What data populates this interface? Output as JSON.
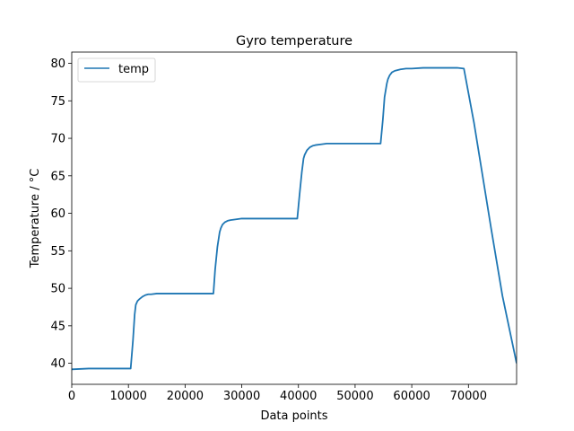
{
  "chart_data": {
    "type": "line",
    "title": "Gyro temperature",
    "xlabel": "Data points",
    "ylabel": "Temperature / °C",
    "xlim": [
      0,
      78500
    ],
    "ylim": [
      37.2,
      81.5
    ],
    "xticks": [
      0,
      10000,
      20000,
      30000,
      40000,
      50000,
      60000,
      70000
    ],
    "xtick_labels": [
      "0",
      "10000",
      "20000",
      "30000",
      "40000",
      "50000",
      "60000",
      "70000"
    ],
    "yticks": [
      40,
      45,
      50,
      55,
      60,
      65,
      70,
      75,
      80
    ],
    "ytick_labels": [
      "40",
      "45",
      "50",
      "55",
      "60",
      "65",
      "70",
      "75",
      "80"
    ],
    "grid": false,
    "legend": {
      "position": "top-left",
      "entries": [
        "temp"
      ]
    },
    "colors": {
      "temp": "#1f77b4"
    },
    "series": [
      {
        "name": "temp",
        "x": [
          0,
          3000,
          10400,
          10800,
          11100,
          11300,
          11600,
          12000,
          12500,
          13000,
          13500,
          14000,
          15000,
          16000,
          18000,
          22000,
          25000,
          25300,
          25700,
          26100,
          26300,
          26600,
          27000,
          27500,
          28000,
          29000,
          30000,
          31000,
          35000,
          39800,
          40200,
          40600,
          40900,
          41100,
          41500,
          42000,
          42500,
          43000,
          44000,
          45000,
          47000,
          50000,
          54500,
          54900,
          55200,
          55600,
          55800,
          56100,
          56500,
          57000,
          58000,
          59000,
          60000,
          62000,
          65000,
          68000,
          69200,
          71000,
          74000,
          76000,
          78500
        ],
        "values": [
          39.2,
          39.3,
          39.3,
          43.0,
          46.5,
          47.8,
          48.3,
          48.6,
          48.9,
          49.1,
          49.2,
          49.2,
          49.3,
          49.3,
          49.3,
          49.3,
          49.3,
          52.5,
          55.5,
          57.5,
          58.0,
          58.5,
          58.8,
          59.0,
          59.1,
          59.2,
          59.3,
          59.3,
          59.3,
          59.3,
          62.5,
          65.5,
          67.3,
          67.8,
          68.4,
          68.8,
          69.0,
          69.1,
          69.2,
          69.3,
          69.3,
          69.3,
          69.3,
          72.5,
          75.5,
          77.3,
          77.9,
          78.4,
          78.8,
          79.0,
          79.2,
          79.3,
          79.3,
          79.4,
          79.4,
          79.4,
          79.3,
          72.0,
          58.0,
          49.0,
          40.0
        ]
      }
    ]
  }
}
